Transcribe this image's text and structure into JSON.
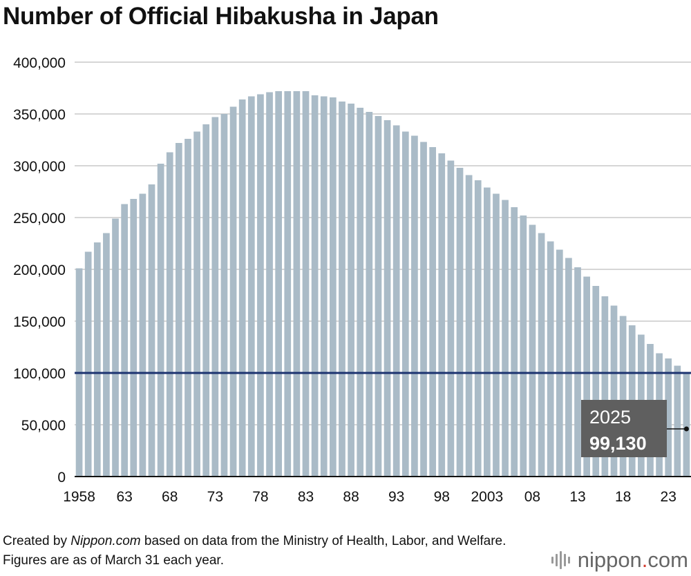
{
  "title": "Number of Official Hibakusha in Japan",
  "footnote": {
    "prefix": "Created by ",
    "source_name": "Nippon.com",
    "rest": " based on data from the Ministry of Health, Labor, and Welfare. Figures are as of March 31 each year."
  },
  "logo": {
    "name": "nippon",
    "dot": ".",
    "tld": "com"
  },
  "colors": {
    "bar": "#aabbc7",
    "reference_line": "#1c3370",
    "callout_bg": "#5f5f5f"
  },
  "chart_data": {
    "type": "bar",
    "title": "Number of Official Hibakusha in Japan",
    "xlabel": "",
    "ylabel": "",
    "categories": [
      "1958",
      "1959",
      "1960",
      "1961",
      "1962",
      "1963",
      "1964",
      "1965",
      "1966",
      "1967",
      "1968",
      "1969",
      "1970",
      "1971",
      "1972",
      "1973",
      "1974",
      "1975",
      "1976",
      "1977",
      "1978",
      "1979",
      "1980",
      "1981",
      "1982",
      "1983",
      "1984",
      "1985",
      "1986",
      "1987",
      "1988",
      "1989",
      "1990",
      "1991",
      "1992",
      "1993",
      "1994",
      "1995",
      "1996",
      "1997",
      "1998",
      "1999",
      "2000",
      "2001",
      "2002",
      "2003",
      "2004",
      "2005",
      "2006",
      "2007",
      "2008",
      "2009",
      "2010",
      "2011",
      "2012",
      "2013",
      "2014",
      "2015",
      "2016",
      "2017",
      "2018",
      "2019",
      "2020",
      "2021",
      "2022",
      "2023",
      "2024",
      "2025"
    ],
    "tick_labels": [
      {
        "category": "1958",
        "label": "1958"
      },
      {
        "category": "1963",
        "label": "63"
      },
      {
        "category": "1968",
        "label": "68"
      },
      {
        "category": "1973",
        "label": "73"
      },
      {
        "category": "1978",
        "label": "78"
      },
      {
        "category": "1983",
        "label": "83"
      },
      {
        "category": "1988",
        "label": "88"
      },
      {
        "category": "1993",
        "label": "93"
      },
      {
        "category": "1998",
        "label": "98"
      },
      {
        "category": "2003",
        "label": "2003"
      },
      {
        "category": "2008",
        "label": "08"
      },
      {
        "category": "2013",
        "label": "13"
      },
      {
        "category": "2018",
        "label": "18"
      },
      {
        "category": "2023",
        "label": "23"
      }
    ],
    "values": [
      201000,
      217000,
      226000,
      235000,
      249000,
      263000,
      268000,
      273000,
      282000,
      302000,
      313000,
      322000,
      326000,
      333000,
      340000,
      347000,
      350000,
      357000,
      364000,
      367000,
      369000,
      371000,
      372000,
      372000,
      372000,
      372000,
      368000,
      367000,
      366000,
      362000,
      360000,
      356000,
      352000,
      348000,
      344000,
      339000,
      333000,
      329000,
      323000,
      318000,
      312000,
      305000,
      298000,
      291000,
      286000,
      279000,
      273000,
      267000,
      260000,
      252000,
      243000,
      235000,
      227000,
      219000,
      211000,
      202000,
      193000,
      184000,
      174000,
      165000,
      155000,
      146000,
      137000,
      128000,
      119000,
      114000,
      107000,
      99130
    ],
    "yticks": [
      {
        "value": 0,
        "label": "0"
      },
      {
        "value": 50000,
        "label": "50,000"
      },
      {
        "value": 100000,
        "label": "100,000"
      },
      {
        "value": 150000,
        "label": "150,000"
      },
      {
        "value": 200000,
        "label": "200,000"
      },
      {
        "value": 250000,
        "label": "250,000"
      },
      {
        "value": 300000,
        "label": "300,000"
      },
      {
        "value": 350000,
        "label": "350,000"
      },
      {
        "value": 400000,
        "label": "400,000"
      }
    ],
    "ylim": [
      0,
      400000
    ],
    "grid": true,
    "reference_line": {
      "value": 100000
    },
    "annotation": {
      "category": "2025",
      "year_label": "2025",
      "value_label": "99,130"
    }
  }
}
